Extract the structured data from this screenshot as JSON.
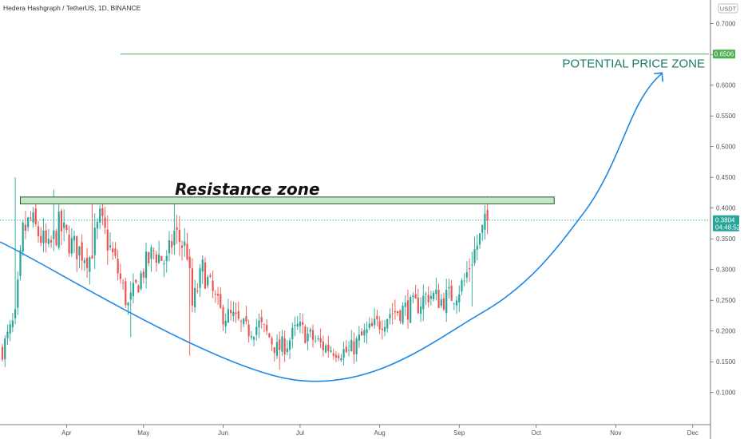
{
  "header": {
    "symbol_title": "Hedera Hashgraph / TetherUS, 1D, BINANCE"
  },
  "price_axis": {
    "unit": "USDT"
  },
  "badges": {
    "target_price": "0.6506",
    "last_price": "0.3804",
    "countdown": "04:48:52"
  },
  "annotations": {
    "resistance": "Resistance zone",
    "potential": "POTENTIAL PRICE ZONE"
  },
  "colors": {
    "up": "#26a69a",
    "down": "#ef5350",
    "curve": "#1e88e5",
    "target_line": "#4caf50",
    "zone_fill": "#c8e6c9",
    "zone_stroke": "#1b5e20",
    "last_price_badge": "#26a69a",
    "potential_text": "#1a7a6a"
  },
  "chart_data": {
    "type": "candlestick",
    "title": "Hedera Hashgraph / TetherUS, 1D, BINANCE",
    "ylim": [
      0.05,
      0.73
    ],
    "y_ticks": [
      "0.1000",
      "0.1500",
      "0.2000",
      "0.2500",
      "0.3000",
      "0.3500",
      "0.4000",
      "0.4500",
      "0.5000",
      "0.5500",
      "0.6000",
      "0.6500",
      "0.7000"
    ],
    "x_ticks": [
      "Apr",
      "May",
      "Jun",
      "Jul",
      "Aug",
      "Sep",
      "Oct",
      "Nov",
      "Dec"
    ],
    "x_tick_dates": [
      "2021-04-01",
      "2021-05-01",
      "2021-06-01",
      "2021-07-01",
      "2021-08-01",
      "2021-09-01",
      "2021-10-01",
      "2021-11-01",
      "2021-12-01"
    ],
    "x_range": [
      "2021-03-07",
      "2021-12-10"
    ],
    "candle_date_range": [
      "2021-03-07",
      "2021-09-12"
    ],
    "legend": "none",
    "grid": false,
    "key_points_close": [
      [
        "2021-03-07",
        0.17
      ],
      [
        "2021-03-12",
        0.22
      ],
      [
        "2021-03-15",
        0.36
      ],
      [
        "2021-03-18",
        0.38
      ],
      [
        "2021-03-25",
        0.33
      ],
      [
        "2021-03-29",
        0.37
      ],
      [
        "2021-04-03",
        0.34
      ],
      [
        "2021-04-10",
        0.32
      ],
      [
        "2021-04-14",
        0.38
      ],
      [
        "2021-04-20",
        0.31
      ],
      [
        "2021-04-25",
        0.24
      ],
      [
        "2021-05-01",
        0.3
      ],
      [
        "2021-05-05",
        0.33
      ],
      [
        "2021-05-10",
        0.31
      ],
      [
        "2021-05-13",
        0.36
      ],
      [
        "2021-05-18",
        0.33
      ],
      [
        "2021-05-20",
        0.24
      ],
      [
        "2021-05-24",
        0.3
      ],
      [
        "2021-05-31",
        0.23
      ],
      [
        "2021-06-05",
        0.22
      ],
      [
        "2021-06-10",
        0.2
      ],
      [
        "2021-06-15",
        0.21
      ],
      [
        "2021-06-19",
        0.19
      ],
      [
        "2021-06-22",
        0.17
      ],
      [
        "2021-06-26",
        0.18
      ],
      [
        "2021-06-30",
        0.205
      ],
      [
        "2021-07-05",
        0.19
      ],
      [
        "2021-07-10",
        0.175
      ],
      [
        "2021-07-15",
        0.17
      ],
      [
        "2021-07-20",
        0.165
      ],
      [
        "2021-07-25",
        0.19
      ],
      [
        "2021-07-31",
        0.21
      ],
      [
        "2021-08-05",
        0.23
      ],
      [
        "2021-08-10",
        0.235
      ],
      [
        "2021-08-15",
        0.24
      ],
      [
        "2021-08-20",
        0.26
      ],
      [
        "2021-08-25",
        0.25
      ],
      [
        "2021-08-30",
        0.26
      ],
      [
        "2021-09-03",
        0.28
      ],
      [
        "2021-09-06",
        0.32
      ],
      [
        "2021-09-10",
        0.36
      ],
      [
        "2021-09-12",
        0.3804
      ]
    ],
    "spike_highs": [
      [
        "2021-03-12",
        0.45
      ],
      [
        "2021-03-27",
        0.43
      ],
      [
        "2021-04-11",
        0.41
      ],
      [
        "2021-05-13",
        0.41
      ],
      [
        "2021-09-11",
        0.405
      ]
    ],
    "spike_lows": [
      [
        "2021-04-26",
        0.19
      ],
      [
        "2021-05-19",
        0.16
      ],
      [
        "2021-06-23",
        0.137
      ],
      [
        "2021-07-23",
        0.15
      ],
      [
        "2021-09-06",
        0.24
      ]
    ],
    "overlays": {
      "resistance_zone": {
        "from": "2021-03-14",
        "to": "2021-10-08",
        "low": 0.407,
        "high": 0.418
      },
      "target_line": {
        "from": "2021-04-22",
        "to": "2021-12-10",
        "price": 0.6506
      },
      "cup_curve": [
        [
          "2021-03-07",
          0.345
        ],
        [
          "2021-06-28",
          0.121
        ],
        [
          "2021-09-10",
          0.23
        ],
        [
          "2021-10-20",
          0.395
        ],
        [
          "2021-11-10",
          0.57
        ],
        [
          "2021-11-19",
          0.62
        ]
      ]
    }
  }
}
